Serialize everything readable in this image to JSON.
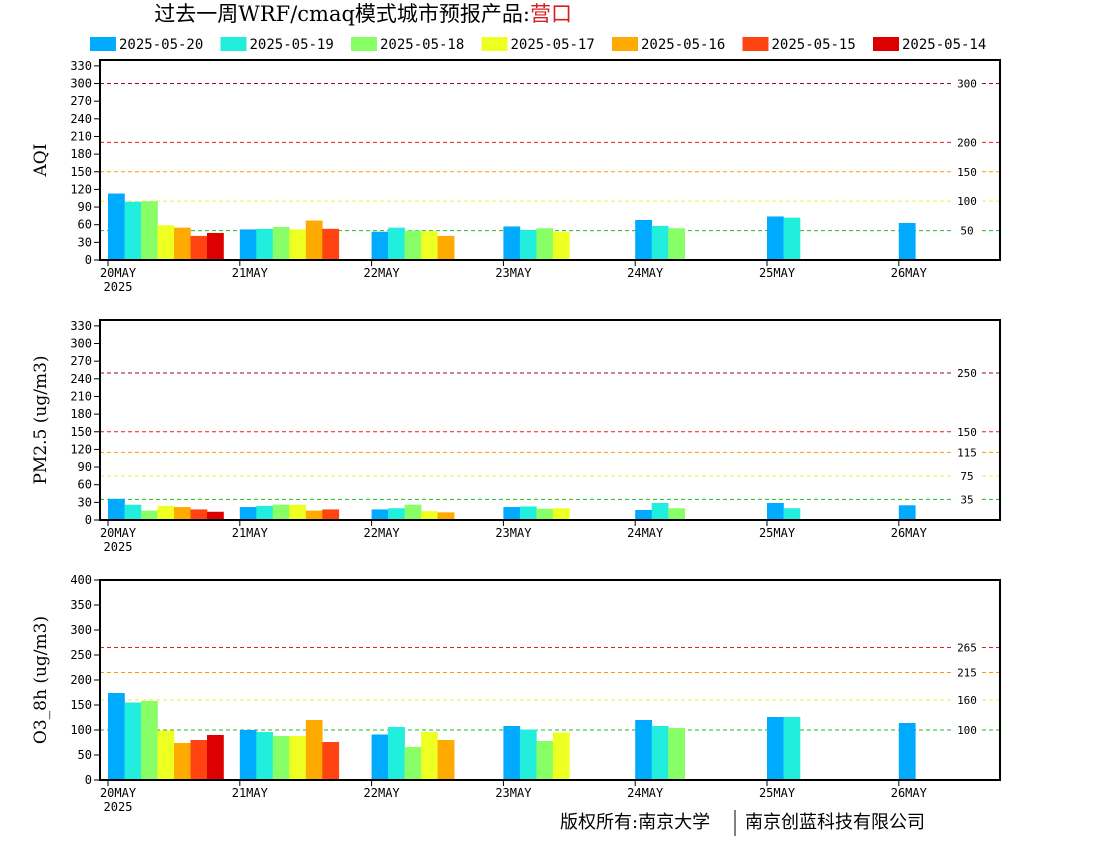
{
  "title": "过去一周WRF/cmaq模式城市预报产品:",
  "city": "营口",
  "copyright_left": "版权所有:南京大学",
  "copyright_right": "南京创蓝科技有限公司",
  "chart_data": [
    {
      "type": "bar",
      "ylabel": "AQI",
      "ylim": [
        0,
        340
      ],
      "yticks": [
        0,
        30,
        60,
        90,
        120,
        150,
        180,
        210,
        240,
        270,
        300,
        330
      ],
      "categories": [
        "20MAY",
        "21MAY",
        "22MAY",
        "23MAY",
        "24MAY",
        "25MAY",
        "26MAY"
      ],
      "year_label": "2025",
      "reference_lines": [
        {
          "value": 50,
          "label": "50",
          "color": "#22bb22"
        },
        {
          "value": 100,
          "label": "100",
          "color": "#eeee44"
        },
        {
          "value": 150,
          "label": "150",
          "color": "#ff9900"
        },
        {
          "value": 200,
          "label": "200",
          "color": "#dd2222"
        },
        {
          "value": 300,
          "label": "300",
          "color": "#990044"
        }
      ],
      "series": [
        {
          "name": "2025-05-20",
          "color": "#00aaff",
          "values": [
            113,
            52,
            48,
            57,
            68,
            74,
            63
          ]
        },
        {
          "name": "2025-05-19",
          "color": "#22eedd",
          "values": [
            99,
            53,
            55,
            51,
            58,
            72,
            null
          ]
        },
        {
          "name": "2025-05-18",
          "color": "#88ff66",
          "values": [
            100,
            56,
            50,
            54,
            54,
            null,
            null
          ]
        },
        {
          "name": "2025-05-17",
          "color": "#eeff22",
          "values": [
            59,
            52,
            49,
            48,
            null,
            null,
            null
          ]
        },
        {
          "name": "2025-05-16",
          "color": "#ffaa00",
          "values": [
            55,
            67,
            41,
            null,
            null,
            null,
            null
          ]
        },
        {
          "name": "2025-05-15",
          "color": "#ff4411",
          "values": [
            41,
            53,
            null,
            null,
            null,
            null,
            null
          ]
        },
        {
          "name": "2025-05-14",
          "color": "#dd0000",
          "values": [
            46,
            null,
            null,
            null,
            null,
            null,
            null
          ]
        }
      ]
    },
    {
      "type": "bar",
      "ylabel": "PM2.5 (ug/m3)",
      "ylim": [
        0,
        340
      ],
      "yticks": [
        0,
        30,
        60,
        90,
        120,
        150,
        180,
        210,
        240,
        270,
        300,
        330
      ],
      "categories": [
        "20MAY",
        "21MAY",
        "22MAY",
        "23MAY",
        "24MAY",
        "25MAY",
        "26MAY"
      ],
      "year_label": "2025",
      "reference_lines": [
        {
          "value": 35,
          "label": "35",
          "color": "#22bb22"
        },
        {
          "value": 75,
          "label": "75",
          "color": "#eeee44"
        },
        {
          "value": 115,
          "label": "115",
          "color": "#ff9900"
        },
        {
          "value": 150,
          "label": "150",
          "color": "#dd2222"
        },
        {
          "value": 250,
          "label": "250",
          "color": "#990044"
        }
      ],
      "series": [
        {
          "name": "2025-05-20",
          "color": "#00aaff",
          "values": [
            36,
            22,
            18,
            22,
            17,
            29,
            25
          ]
        },
        {
          "name": "2025-05-19",
          "color": "#22eedd",
          "values": [
            26,
            24,
            20,
            23,
            29,
            20,
            null
          ]
        },
        {
          "name": "2025-05-18",
          "color": "#88ff66",
          "values": [
            16,
            26,
            26,
            19,
            20,
            null,
            null
          ]
        },
        {
          "name": "2025-05-17",
          "color": "#eeff22",
          "values": [
            24,
            26,
            15,
            20,
            null,
            null,
            null
          ]
        },
        {
          "name": "2025-05-16",
          "color": "#ffaa00",
          "values": [
            22,
            16,
            13,
            null,
            null,
            null,
            null
          ]
        },
        {
          "name": "2025-05-15",
          "color": "#ff4411",
          "values": [
            18,
            18,
            null,
            null,
            null,
            null,
            null
          ]
        },
        {
          "name": "2025-05-14",
          "color": "#dd0000",
          "values": [
            14,
            null,
            null,
            null,
            null,
            null,
            null
          ]
        }
      ]
    },
    {
      "type": "bar",
      "ylabel": "O3_8h (ug/m3)",
      "ylim": [
        0,
        400
      ],
      "yticks": [
        0,
        50,
        100,
        150,
        200,
        250,
        300,
        350,
        400
      ],
      "categories": [
        "20MAY",
        "21MAY",
        "22MAY",
        "23MAY",
        "24MAY",
        "25MAY",
        "26MAY"
      ],
      "year_label": "2025",
      "reference_lines": [
        {
          "value": 100,
          "label": "100",
          "color": "#22bb22"
        },
        {
          "value": 160,
          "label": "160",
          "color": "#eeee44"
        },
        {
          "value": 215,
          "label": "215",
          "color": "#ff9900"
        },
        {
          "value": 265,
          "label": "265",
          "color": "#dd2222"
        }
      ],
      "series": [
        {
          "name": "2025-05-20",
          "color": "#00aaff",
          "values": [
            174,
            100,
            91,
            108,
            120,
            126,
            114
          ]
        },
        {
          "name": "2025-05-19",
          "color": "#22eedd",
          "values": [
            155,
            96,
            106,
            101,
            108,
            126,
            null
          ]
        },
        {
          "name": "2025-05-18",
          "color": "#88ff66",
          "values": [
            158,
            88,
            66,
            78,
            104,
            null,
            null
          ]
        },
        {
          "name": "2025-05-17",
          "color": "#eeff22",
          "values": [
            99,
            88,
            96,
            95,
            null,
            null,
            null
          ]
        },
        {
          "name": "2025-05-16",
          "color": "#ffaa00",
          "values": [
            74,
            120,
            80,
            null,
            null,
            null,
            null
          ]
        },
        {
          "name": "2025-05-15",
          "color": "#ff4411",
          "values": [
            80,
            76,
            null,
            null,
            null,
            null,
            null
          ]
        },
        {
          "name": "2025-05-14",
          "color": "#dd0000",
          "values": [
            90,
            null,
            null,
            null,
            null,
            null,
            null
          ]
        }
      ]
    }
  ]
}
